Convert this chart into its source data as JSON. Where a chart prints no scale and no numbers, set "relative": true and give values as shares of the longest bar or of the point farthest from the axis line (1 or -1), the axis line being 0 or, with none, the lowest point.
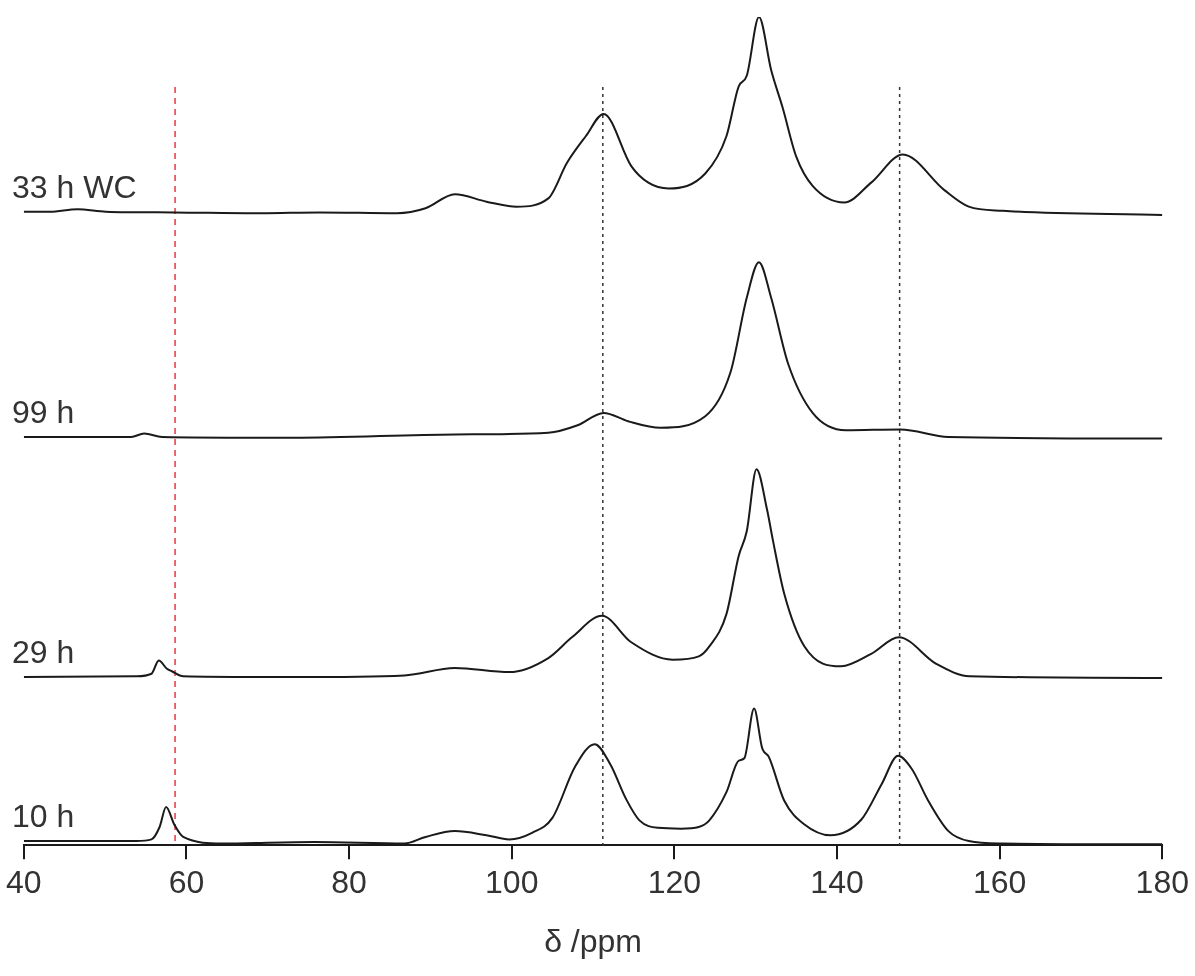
{
  "chart_data": {
    "type": "line",
    "xlabel": "δ /ppm",
    "relative": true,
    "xlim": [
      40,
      180
    ],
    "xticks": [
      40,
      60,
      80,
      100,
      120,
      140,
      160,
      180
    ],
    "grid": false,
    "legend": false,
    "marker": "none",
    "line_style": "solid",
    "series": [
      {
        "name": "10 h",
        "color": "#1a1a1a",
        "x": [
          40,
          53.8,
          55.7,
          56.7,
          57.5,
          58.5,
          59.6,
          64.4,
          75.7,
          86.8,
          89.4,
          93.0,
          96.9,
          99.7,
          102.5,
          105.0,
          107.8,
          110.2,
          112.1,
          114.1,
          115.7,
          118.0,
          120.8,
          123.0,
          124.3,
          126.4,
          127.9,
          128.6,
          129.8,
          130.8,
          131.6,
          133.5,
          136.0,
          139.2,
          143.0,
          145.5,
          147.5,
          149.2,
          151.2,
          153.7,
          156.2,
          160.4,
          180
        ],
        "values": [
          0.005,
          0.005,
          0.007,
          0.022,
          0.046,
          0.025,
          0.01,
          0.002,
          0.004,
          0.002,
          0.01,
          0.017,
          0.012,
          0.007,
          0.015,
          0.033,
          0.095,
          0.122,
          0.098,
          0.055,
          0.03,
          0.021,
          0.02,
          0.022,
          0.03,
          0.064,
          0.102,
          0.105,
          0.165,
          0.117,
          0.107,
          0.054,
          0.025,
          0.012,
          0.031,
          0.074,
          0.108,
          0.092,
          0.054,
          0.017,
          0.005,
          0.002,
          0.001
        ]
      },
      {
        "name": "29 h",
        "color": "#1a1a1a",
        "x": [
          40,
          53.8,
          55.7,
          56.6,
          57.6,
          58.2,
          59.6,
          73.2,
          86.8,
          93.0,
          99.7,
          104.5,
          107.4,
          111.1,
          114.7,
          119.8,
          123.0,
          124.3,
          126.4,
          127.9,
          128.9,
          130.1,
          131.4,
          132.1,
          133.5,
          136.0,
          140.5,
          144.2,
          147.6,
          152.2,
          156.3,
          180
        ],
        "values": [
          0.203,
          0.204,
          0.207,
          0.223,
          0.213,
          0.21,
          0.204,
          0.203,
          0.205,
          0.214,
          0.209,
          0.226,
          0.251,
          0.277,
          0.245,
          0.224,
          0.228,
          0.24,
          0.279,
          0.349,
          0.379,
          0.454,
          0.405,
          0.369,
          0.304,
          0.24,
          0.216,
          0.231,
          0.251,
          0.219,
          0.204,
          0.202
        ]
      },
      {
        "name": "99 h",
        "color": "#1a1a1a",
        "x": [
          40,
          53.2,
          54.8,
          57.0,
          73.2,
          93.0,
          104.5,
          108.1,
          111.3,
          114.3,
          118.3,
          123.8,
          126.9,
          128.9,
          130.4,
          131.9,
          134.0,
          137.0,
          141.1,
          147.8,
          153.7,
          180
        ],
        "values": [
          0.493,
          0.493,
          0.497,
          0.493,
          0.492,
          0.496,
          0.498,
          0.507,
          0.522,
          0.512,
          0.504,
          0.518,
          0.571,
          0.661,
          0.704,
          0.661,
          0.581,
          0.522,
          0.501,
          0.502,
          0.493,
          0.491
        ]
      },
      {
        "name": "33 h WC",
        "color": "#1a1a1a",
        "x": [
          40,
          43.2,
          46.6,
          50.1,
          58.5,
          69.2,
          76.3,
          85.9,
          89.4,
          93.0,
          96.9,
          100.6,
          104.5,
          106.8,
          109.1,
          111.3,
          114.7,
          116.8,
          119.3,
          123.8,
          126.4,
          127.9,
          128.9,
          130.4,
          131.9,
          133.3,
          135.0,
          137.0,
          140.9,
          144.2,
          148.1,
          153.2,
          156.2,
          160.4,
          180
        ],
        "values": [
          0.765,
          0.765,
          0.768,
          0.765,
          0.764,
          0.763,
          0.764,
          0.763,
          0.769,
          0.786,
          0.777,
          0.771,
          0.781,
          0.824,
          0.856,
          0.883,
          0.82,
          0.8,
          0.793,
          0.811,
          0.856,
          0.916,
          0.929,
          1.0,
          0.936,
          0.891,
          0.831,
          0.796,
          0.776,
          0.8,
          0.834,
          0.791,
          0.771,
          0.766,
          0.761
        ]
      }
    ],
    "ref_lines": [
      {
        "axis": "x",
        "value": 58.6,
        "color": "#e8383d",
        "line_style": "dashed"
      },
      {
        "axis": "x",
        "value": 111.2,
        "color": "#333333",
        "line_style": "dotted"
      },
      {
        "axis": "x",
        "value": 147.7,
        "color": "#333333",
        "line_style": "dotted"
      }
    ]
  }
}
